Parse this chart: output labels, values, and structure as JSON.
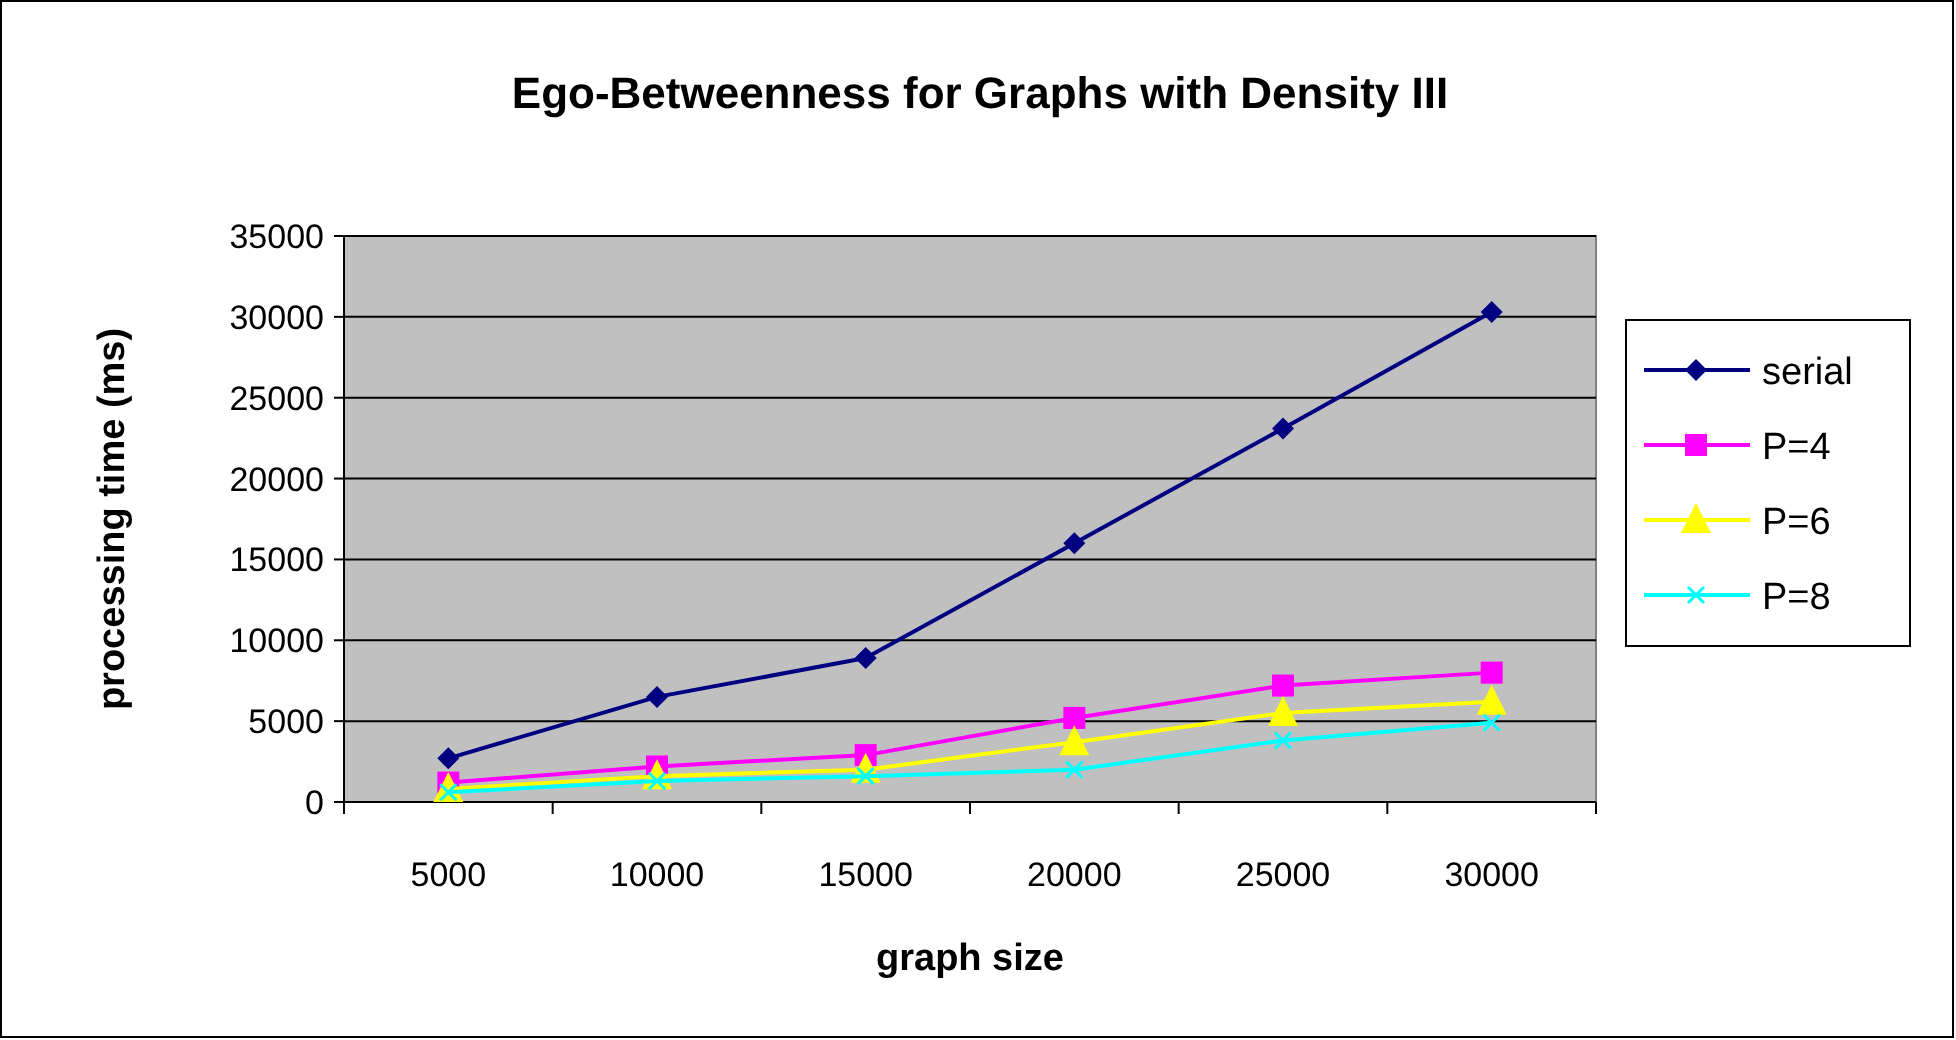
{
  "chart_data": {
    "type": "line",
    "title": "Ego-Betweenness for Graphs with Density III",
    "xlabel": "graph size",
    "ylabel": "processing time (ms)",
    "categories": [
      "5000",
      "10000",
      "15000",
      "20000",
      "25000",
      "30000"
    ],
    "series": [
      {
        "name": "serial",
        "color": "#000080",
        "marker": "diamond",
        "values": [
          2700,
          6500,
          8900,
          16000,
          23100,
          30300
        ]
      },
      {
        "name": "P=4",
        "color": "#ff00ff",
        "marker": "square",
        "values": [
          1200,
          2200,
          2900,
          5200,
          7200,
          8000
        ]
      },
      {
        "name": "P=6",
        "color": "#ffff00",
        "marker": "triangle",
        "values": [
          800,
          1600,
          2000,
          3700,
          5500,
          6200
        ]
      },
      {
        "name": "P=8",
        "color": "#00ffff",
        "marker": "cross",
        "values": [
          600,
          1300,
          1600,
          2000,
          3800,
          4900
        ]
      }
    ],
    "ylim": [
      0,
      35000
    ],
    "yticks": [
      0,
      5000,
      10000,
      15000,
      20000,
      25000,
      30000,
      35000
    ],
    "grid": "y",
    "legend": "right"
  }
}
